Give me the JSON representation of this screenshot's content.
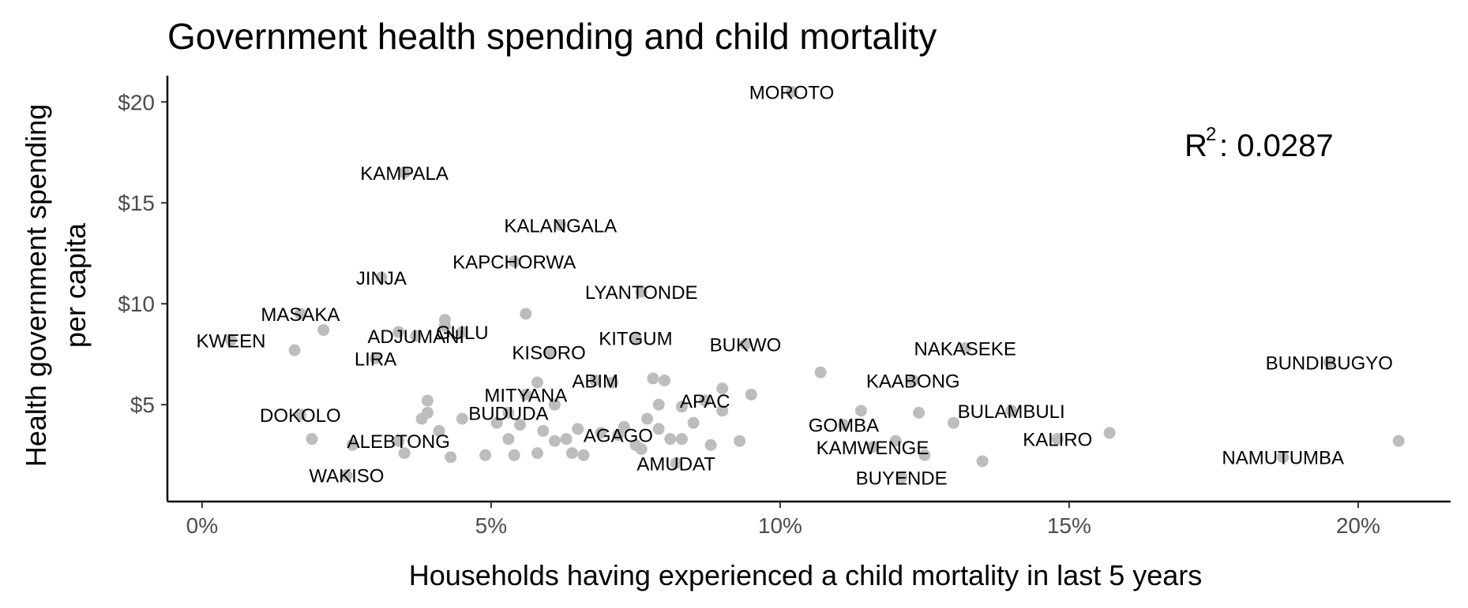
{
  "chart_data": {
    "type": "scatter",
    "title": "Government health spending and child mortality",
    "xlabel": "Households having experienced a child mortality in last 5 years",
    "ylabel_lines": [
      "Health government spending",
      "per capita"
    ],
    "xlim": [
      -0.006,
      0.216
    ],
    "ylim": [
      0.2,
      21.3
    ],
    "x_ticks": [
      0,
      0.05,
      0.1,
      0.15,
      0.2
    ],
    "x_tick_labels": [
      "0%",
      "5%",
      "10%",
      "15%",
      "20%"
    ],
    "y_ticks": [
      5,
      10,
      15,
      20
    ],
    "y_tick_labels": [
      "$5",
      "$10",
      "$15",
      "$20"
    ],
    "grid": false,
    "annotation": {
      "r2_prefix": "R",
      "r2_exponent": "2",
      "r2_value": ": 0.0287"
    },
    "point_color": "#bdbdbd",
    "points": [
      {
        "x": 0.102,
        "y": 20.5,
        "label": "MOROTO"
      },
      {
        "x": 0.035,
        "y": 16.5,
        "label": "KAMPALA"
      },
      {
        "x": 0.062,
        "y": 13.9,
        "label": "KALANGALA"
      },
      {
        "x": 0.054,
        "y": 12.1,
        "label": "KAPCHORWA"
      },
      {
        "x": 0.031,
        "y": 11.3,
        "label": "JINJA"
      },
      {
        "x": 0.076,
        "y": 10.6,
        "label": "LYANTONDE"
      },
      {
        "x": 0.017,
        "y": 9.5,
        "label": "MASAKA"
      },
      {
        "x": 0.005,
        "y": 8.2,
        "label": "KWEEN"
      },
      {
        "x": 0.037,
        "y": 8.4,
        "label": "ADJUMANI"
      },
      {
        "x": 0.045,
        "y": 8.6,
        "label": "GULU"
      },
      {
        "x": 0.075,
        "y": 8.3,
        "label": "KITGUM"
      },
      {
        "x": 0.094,
        "y": 8.0,
        "label": "BUKWO"
      },
      {
        "x": 0.06,
        "y": 7.6,
        "label": "KISORO"
      },
      {
        "x": 0.03,
        "y": 7.3,
        "label": "LIRA"
      },
      {
        "x": 0.132,
        "y": 7.8,
        "label": "NAKASEKE"
      },
      {
        "x": 0.195,
        "y": 7.1,
        "label": "BUNDIBUGYO"
      },
      {
        "x": 0.068,
        "y": 6.2,
        "label": "ABIM"
      },
      {
        "x": 0.056,
        "y": 5.5,
        "label": "MITYANA"
      },
      {
        "x": 0.123,
        "y": 6.2,
        "label": "KAABONG"
      },
      {
        "x": 0.087,
        "y": 5.2,
        "label": "APAC"
      },
      {
        "x": 0.017,
        "y": 4.5,
        "label": "DOKOLO"
      },
      {
        "x": 0.053,
        "y": 4.6,
        "label": "BUDUDA"
      },
      {
        "x": 0.14,
        "y": 4.7,
        "label": "BULAMBULI"
      },
      {
        "x": 0.111,
        "y": 4.0,
        "label": "GOMBA"
      },
      {
        "x": 0.072,
        "y": 3.5,
        "label": "AGAGO"
      },
      {
        "x": 0.034,
        "y": 3.2,
        "label": "ALEBTONG"
      },
      {
        "x": 0.148,
        "y": 3.3,
        "label": "KALIRO"
      },
      {
        "x": 0.116,
        "y": 2.9,
        "label": "KAMWENGE"
      },
      {
        "x": 0.082,
        "y": 2.1,
        "label": "AMUDAT"
      },
      {
        "x": 0.187,
        "y": 2.4,
        "label": "NAMUTUMBA"
      },
      {
        "x": 0.025,
        "y": 1.5,
        "label": "WAKISO"
      },
      {
        "x": 0.121,
        "y": 1.4,
        "label": "BUYENDE"
      },
      {
        "x": 0.016,
        "y": 7.7
      },
      {
        "x": 0.021,
        "y": 8.7
      },
      {
        "x": 0.042,
        "y": 9.2
      },
      {
        "x": 0.042,
        "y": 8.9
      },
      {
        "x": 0.056,
        "y": 9.5
      },
      {
        "x": 0.034,
        "y": 8.6
      },
      {
        "x": 0.078,
        "y": 6.3
      },
      {
        "x": 0.08,
        "y": 6.2
      },
      {
        "x": 0.09,
        "y": 5.8
      },
      {
        "x": 0.095,
        "y": 5.5
      },
      {
        "x": 0.107,
        "y": 6.6
      },
      {
        "x": 0.071,
        "y": 6.1
      },
      {
        "x": 0.058,
        "y": 6.1
      },
      {
        "x": 0.039,
        "y": 5.2
      },
      {
        "x": 0.061,
        "y": 5.0
      },
      {
        "x": 0.079,
        "y": 5.0
      },
      {
        "x": 0.083,
        "y": 4.9
      },
      {
        "x": 0.09,
        "y": 4.7
      },
      {
        "x": 0.114,
        "y": 4.7
      },
      {
        "x": 0.124,
        "y": 4.6
      },
      {
        "x": 0.13,
        "y": 4.1
      },
      {
        "x": 0.038,
        "y": 4.3
      },
      {
        "x": 0.039,
        "y": 4.6
      },
      {
        "x": 0.045,
        "y": 4.3
      },
      {
        "x": 0.051,
        "y": 4.1
      },
      {
        "x": 0.055,
        "y": 4.0
      },
      {
        "x": 0.059,
        "y": 3.7
      },
      {
        "x": 0.065,
        "y": 3.8
      },
      {
        "x": 0.069,
        "y": 3.6
      },
      {
        "x": 0.073,
        "y": 3.9
      },
      {
        "x": 0.077,
        "y": 4.3
      },
      {
        "x": 0.079,
        "y": 3.8
      },
      {
        "x": 0.085,
        "y": 4.1
      },
      {
        "x": 0.088,
        "y": 3.0
      },
      {
        "x": 0.093,
        "y": 3.2
      },
      {
        "x": 0.019,
        "y": 3.3
      },
      {
        "x": 0.026,
        "y": 3.0
      },
      {
        "x": 0.035,
        "y": 2.6
      },
      {
        "x": 0.041,
        "y": 3.7
      },
      {
        "x": 0.043,
        "y": 2.4
      },
      {
        "x": 0.049,
        "y": 2.5
      },
      {
        "x": 0.053,
        "y": 3.3
      },
      {
        "x": 0.054,
        "y": 2.5
      },
      {
        "x": 0.058,
        "y": 2.6
      },
      {
        "x": 0.061,
        "y": 3.2
      },
      {
        "x": 0.063,
        "y": 3.3
      },
      {
        "x": 0.064,
        "y": 2.6
      },
      {
        "x": 0.066,
        "y": 2.5
      },
      {
        "x": 0.075,
        "y": 3.0
      },
      {
        "x": 0.076,
        "y": 2.8
      },
      {
        "x": 0.081,
        "y": 3.3
      },
      {
        "x": 0.083,
        "y": 3.3
      },
      {
        "x": 0.12,
        "y": 3.2
      },
      {
        "x": 0.125,
        "y": 2.5
      },
      {
        "x": 0.135,
        "y": 2.2
      },
      {
        "x": 0.157,
        "y": 3.6
      },
      {
        "x": 0.207,
        "y": 3.2
      }
    ]
  }
}
